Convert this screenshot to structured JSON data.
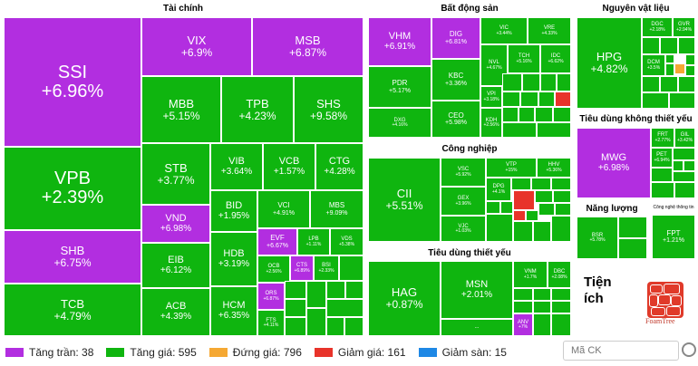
{
  "sectors": {
    "tai_chinh": "Tài chính",
    "bat_dong_san": "Bất động sản",
    "nguyen_vat_lieu": "Nguyên vật liệu",
    "cong_nghiep": "Công nghiệp",
    "tieu_dung_khong_thiet_yeu": "Tiêu dùng không thiết yếu",
    "nang_luong": "Năng lượng",
    "tieu_dung_thiet_yeu": "Tiêu dùng thiết yếu",
    "cong_nghe_thong_tin": "Công nghệ thông tin",
    "tien_ich": "Tiện ích"
  },
  "tiles": {
    "SSI": {
      "s": "SSI",
      "v": "+6.96%"
    },
    "VIX": {
      "s": "VIX",
      "v": "+6.9%"
    },
    "MSB": {
      "s": "MSB",
      "v": "+6.87%"
    },
    "MBB": {
      "s": "MBB",
      "v": "+5.15%"
    },
    "TPB": {
      "s": "TPB",
      "v": "+4.23%"
    },
    "SHS": {
      "s": "SHS",
      "v": "+9.58%"
    },
    "VPB": {
      "s": "VPB",
      "v": "+2.39%"
    },
    "STB": {
      "s": "STB",
      "v": "+3.77%"
    },
    "VIB": {
      "s": "VIB",
      "v": "+3.64%"
    },
    "VCB": {
      "s": "VCB",
      "v": "+1.57%"
    },
    "CTG": {
      "s": "CTG",
      "v": "+4.28%"
    },
    "VND": {
      "s": "VND",
      "v": "+6.98%"
    },
    "BID": {
      "s": "BID",
      "v": "+1.95%"
    },
    "VCI": {
      "s": "VCI",
      "v": "+4.91%"
    },
    "MBS": {
      "s": "MBS",
      "v": "+9.09%"
    },
    "EVF": {
      "s": "EVF",
      "v": "+6.67%"
    },
    "LPB": {
      "s": "LPB",
      "v": "+1.11%"
    },
    "VDS": {
      "s": "VDS",
      "v": "+5.38%"
    },
    "SHB": {
      "s": "SHB",
      "v": "+6.75%"
    },
    "EIB": {
      "s": "EIB",
      "v": "+6.12%"
    },
    "HDB": {
      "s": "HDB",
      "v": "+3.19%"
    },
    "OCB": {
      "s": "OCB",
      "v": "+2.56%"
    },
    "CTS": {
      "s": "CTS",
      "v": "+6.89%"
    },
    "BSI": {
      "s": "BSI",
      "v": "+2.33%"
    },
    "TCB": {
      "s": "TCB",
      "v": "+4.79%"
    },
    "ACB": {
      "s": "ACB",
      "v": "+4.39%"
    },
    "HCM": {
      "s": "HCM",
      "v": "+6.35%"
    },
    "ORS": {
      "s": "ORS",
      "v": "+6.87%"
    },
    "FTS": {
      "s": "FTS",
      "v": "+4.11%"
    },
    "VHM": {
      "s": "VHM",
      "v": "+6.91%"
    },
    "DIG": {
      "s": "DIG",
      "v": "+6.81%"
    },
    "VIC": {
      "s": "VIC",
      "v": "+3.44%"
    },
    "VRE": {
      "s": "VRE",
      "v": "+4.33%"
    },
    "KBC": {
      "s": "KBC",
      "v": "+3.36%"
    },
    "NVL": {
      "s": "NVL",
      "v": "+4.67%"
    },
    "TCH": {
      "s": "TCH",
      "v": "+5.16%"
    },
    "IDC": {
      "s": "IDC",
      "v": "+6.62%"
    },
    "PDR": {
      "s": "PDR",
      "v": "+5.17%"
    },
    "VPI": {
      "s": "VPI",
      "v": "+3.18%"
    },
    "CEO": {
      "s": "CEO",
      "v": "+5.98%"
    },
    "DXG": {
      "s": "DXG",
      "v": "+4.16%"
    },
    "KDH": {
      "s": "KDH",
      "v": "+2.56%"
    },
    "HPG": {
      "s": "HPG",
      "v": "+4.82%"
    },
    "DGC": {
      "s": "DGC",
      "v": "+2.18%"
    },
    "GVR": {
      "s": "GVR",
      "v": "+2.94%"
    },
    "DCM": {
      "s": "DCM",
      "v": "+3.5%"
    },
    "CII": {
      "s": "CII",
      "v": "+5.51%"
    },
    "VSC": {
      "s": "VSC",
      "v": "+5.92%"
    },
    "VTP": {
      "s": "VTP",
      "v": "+15%"
    },
    "HHV": {
      "s": "HHV",
      "v": "+5.36%"
    },
    "GEX": {
      "s": "GEX",
      "v": "+3.96%"
    },
    "VJC": {
      "s": "VJC",
      "v": "+1.03%"
    },
    "DPG": {
      "s": "DPG",
      "v": "+4.1%"
    },
    "MWG": {
      "s": "MWG",
      "v": "+6.98%"
    },
    "FRT": {
      "s": "FRT",
      "v": "+2.77%"
    },
    "GIL": {
      "s": "GIL",
      "v": "+3.42%"
    },
    "PET": {
      "s": "PET",
      "v": "+6.94%"
    },
    "BSR": {
      "s": "BSR",
      "v": "+5.78%"
    },
    "FPT": {
      "s": "FPT",
      "v": "+1.21%"
    },
    "HAG": {
      "s": "HAG",
      "v": "+0.87%"
    },
    "MSN": {
      "s": "MSN",
      "v": "+2.01%"
    },
    "VHM2": {
      "s": "VNM",
      "v": "+1.7%"
    },
    "DBC": {
      "s": "DBC",
      "v": "+2.08%"
    },
    "ANV": {
      "s": "ANV",
      "v": "+7%"
    },
    "ellipsis": {
      "s": "...",
      "v": ""
    }
  },
  "foamtree_label": "FoamTree",
  "legend": {
    "tang_tran": "Tăng trần: 38",
    "tang_gia": "Tăng giá: 595",
    "dung_gia": "Đứng giá: 796",
    "giam_gia": "Giảm giá: 161",
    "giam_san": "Giảm sàn: 15"
  },
  "search": {
    "placeholder": "Mã CK"
  },
  "colors": {
    "ceiling": "#b22ee0",
    "up": "#0fb50f",
    "flat": "#f5a833",
    "down": "#e8332a",
    "floor": "#1e88e5"
  }
}
